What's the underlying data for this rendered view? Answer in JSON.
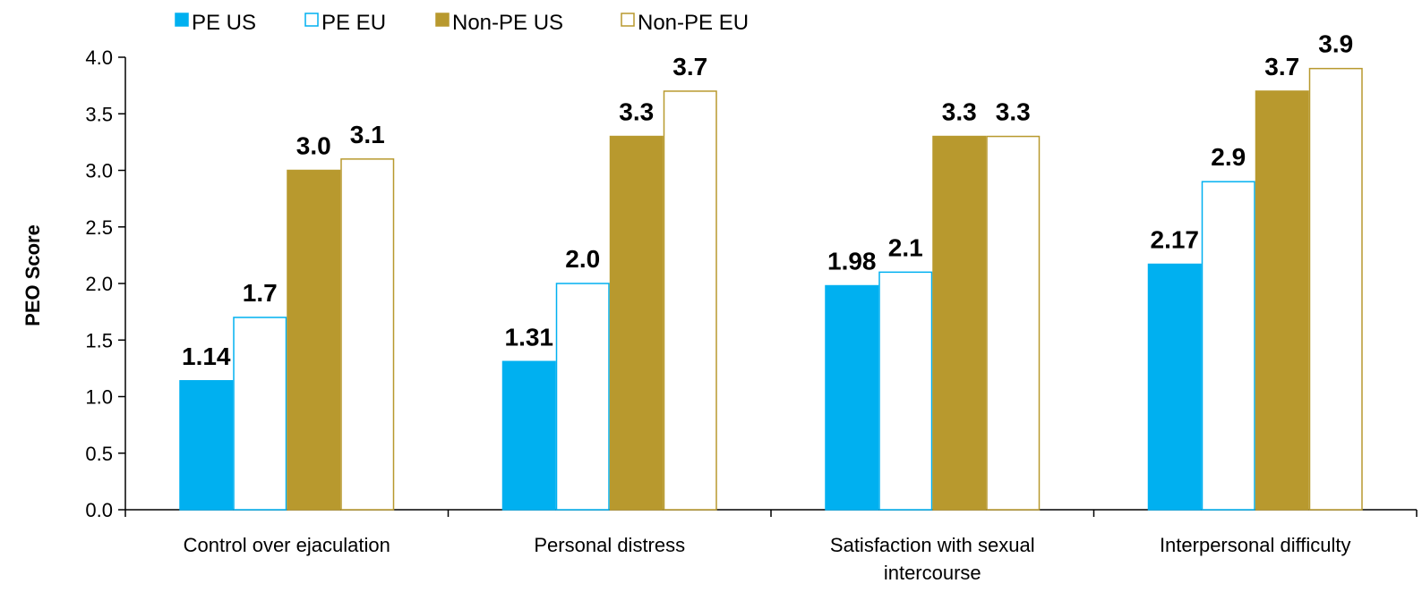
{
  "chart_data": {
    "type": "bar",
    "ylabel": "PEO Score",
    "xlabel": "",
    "ylim": [
      0,
      4.0
    ],
    "ytick_step": 0.5,
    "yticks": [
      "0.0",
      "0.5",
      "1.0",
      "1.5",
      "2.0",
      "2.5",
      "3.0",
      "3.5",
      "4.0"
    ],
    "categories": [
      [
        "Control over ejaculation"
      ],
      [
        "Personal distress"
      ],
      [
        "Satisfaction with sexual",
        "intercourse"
      ],
      [
        "Interpersonal difficulty"
      ]
    ],
    "legend_position": "top-left",
    "grid": false,
    "series": [
      {
        "name": "PE US",
        "fill": "#00b0f0",
        "stroke": "#00b0f0",
        "values": [
          1.14,
          1.31,
          1.98,
          2.17
        ],
        "labels": [
          "1.14",
          "1.31",
          "1.98",
          "2.17"
        ]
      },
      {
        "name": "PE EU",
        "fill": "#ffffff",
        "stroke": "#00b0f0",
        "values": [
          1.7,
          2.0,
          2.1,
          2.9
        ],
        "labels": [
          "1.7",
          "2.0",
          "2.1",
          "2.9"
        ]
      },
      {
        "name": "Non-PE US",
        "fill": "#b8992e",
        "stroke": "#b8992e",
        "values": [
          3.0,
          3.3,
          3.3,
          3.7
        ],
        "labels": [
          "3.0",
          "3.3",
          "3.3",
          "3.7"
        ]
      },
      {
        "name": "Non-PE EU",
        "fill": "#ffffff",
        "stroke": "#b8992e",
        "values": [
          3.1,
          3.7,
          3.3,
          3.9
        ],
        "labels": [
          "3.1",
          "3.7",
          "3.3",
          "3.9"
        ]
      }
    ]
  }
}
